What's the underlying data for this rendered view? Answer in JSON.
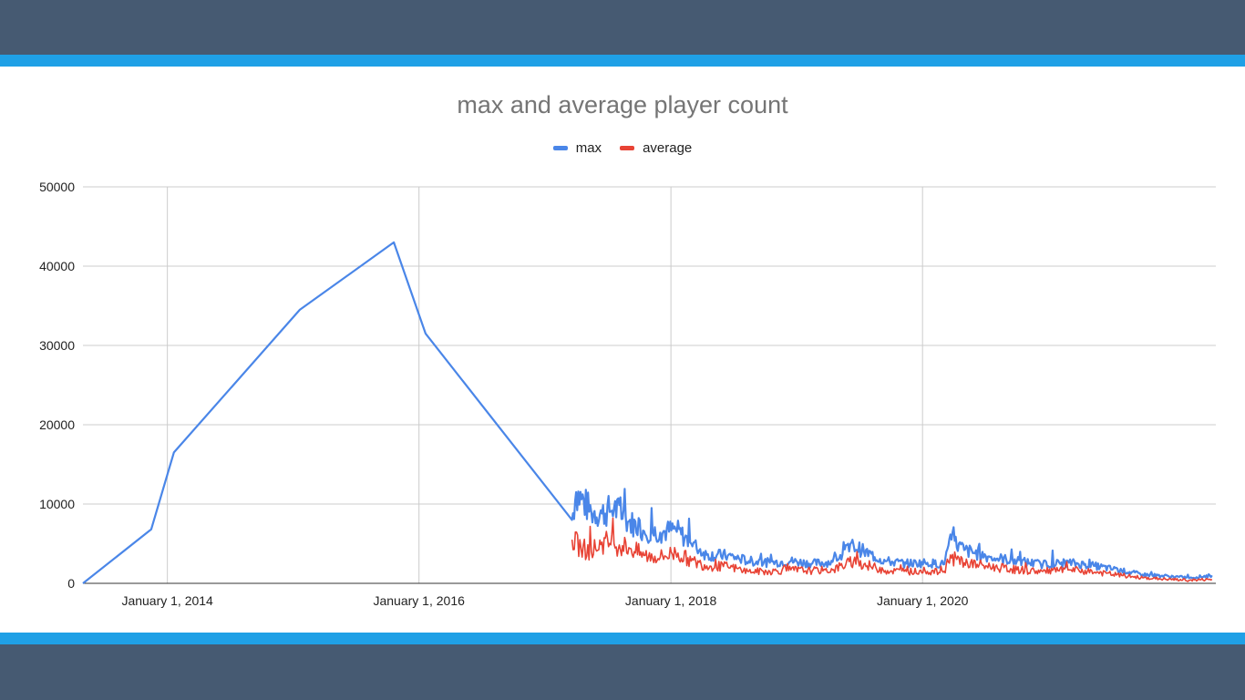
{
  "chart_data": {
    "type": "line",
    "title": "max and average player count",
    "xlabel": "",
    "ylabel": "",
    "legend_position": "top",
    "grid": true,
    "ylim": [
      0,
      50000
    ],
    "xlim": [
      "2013-05-01",
      "2022-05-01"
    ],
    "y_ticks": [
      "0",
      "10000",
      "20000",
      "30000",
      "40000",
      "50000"
    ],
    "x_ticks": [
      {
        "date": "2014-01-01",
        "label": "January 1, 2014"
      },
      {
        "date": "2016-01-01",
        "label": "January 1, 2016"
      },
      {
        "date": "2018-01-01",
        "label": "January 1, 2018"
      },
      {
        "date": "2020-01-01",
        "label": "January 1, 2020"
      }
    ],
    "series": [
      {
        "name": "max",
        "color": "#4a86e8",
        "points": [
          [
            "2013-05-01",
            0
          ],
          [
            "2013-11-15",
            6800
          ],
          [
            "2014-01-20",
            16500
          ],
          [
            "2015-01-20",
            34500
          ],
          [
            "2015-10-20",
            43000
          ],
          [
            "2016-01-20",
            31500
          ],
          [
            "2017-03-20",
            8000
          ],
          [
            "2017-04-01",
            11500
          ],
          [
            "2017-05-15",
            9000
          ],
          [
            "2017-06-15",
            8800
          ],
          [
            "2017-07-20",
            9500
          ],
          [
            "2017-09-01",
            7800
          ],
          [
            "2017-10-15",
            6600
          ],
          [
            "2017-12-01",
            6400
          ],
          [
            "2018-01-15",
            6800
          ],
          [
            "2018-03-01",
            5000
          ],
          [
            "2018-04-15",
            3600
          ],
          [
            "2018-06-15",
            3500
          ],
          [
            "2018-08-15",
            2800
          ],
          [
            "2018-10-15",
            2600
          ],
          [
            "2018-12-15",
            2800
          ],
          [
            "2019-02-15",
            2500
          ],
          [
            "2019-04-15",
            2700
          ],
          [
            "2019-06-15",
            4800
          ],
          [
            "2019-07-15",
            4000
          ],
          [
            "2019-09-15",
            2800
          ],
          [
            "2019-11-15",
            2500
          ],
          [
            "2020-01-15",
            2600
          ],
          [
            "2020-03-01",
            2400
          ],
          [
            "2020-03-25",
            5500
          ],
          [
            "2020-05-01",
            4200
          ],
          [
            "2020-07-15",
            3300
          ],
          [
            "2020-10-01",
            2800
          ],
          [
            "2020-12-15",
            2400
          ],
          [
            "2021-03-01",
            2600
          ],
          [
            "2021-05-15",
            2200
          ],
          [
            "2021-08-01",
            1600
          ],
          [
            "2021-10-01",
            1100
          ],
          [
            "2021-12-15",
            900
          ],
          [
            "2022-02-15",
            700
          ],
          [
            "2022-04-20",
            1000
          ]
        ]
      },
      {
        "name": "average",
        "color": "#e84335",
        "points": [
          [
            "2017-03-20",
            5500
          ],
          [
            "2017-04-15",
            4500
          ],
          [
            "2017-05-15",
            4000
          ],
          [
            "2017-06-15",
            5200
          ],
          [
            "2017-07-20",
            5000
          ],
          [
            "2017-09-01",
            4500
          ],
          [
            "2017-10-15",
            3500
          ],
          [
            "2017-12-01",
            3300
          ],
          [
            "2018-01-15",
            3900
          ],
          [
            "2018-03-01",
            2800
          ],
          [
            "2018-04-15",
            2200
          ],
          [
            "2018-06-15",
            2100
          ],
          [
            "2018-08-15",
            1500
          ],
          [
            "2018-10-15",
            1500
          ],
          [
            "2018-12-15",
            1700
          ],
          [
            "2019-02-15",
            1600
          ],
          [
            "2019-04-15",
            1700
          ],
          [
            "2019-06-15",
            2800
          ],
          [
            "2019-07-15",
            2400
          ],
          [
            "2019-09-15",
            1600
          ],
          [
            "2019-11-15",
            1500
          ],
          [
            "2020-01-15",
            1500
          ],
          [
            "2020-03-01",
            1400
          ],
          [
            "2020-03-25",
            3200
          ],
          [
            "2020-05-01",
            2600
          ],
          [
            "2020-07-15",
            2100
          ],
          [
            "2020-10-01",
            1700
          ],
          [
            "2020-12-15",
            1500
          ],
          [
            "2021-03-01",
            1700
          ],
          [
            "2021-05-15",
            1400
          ],
          [
            "2021-08-01",
            1000
          ],
          [
            "2021-10-01",
            700
          ],
          [
            "2021-12-15",
            500
          ],
          [
            "2022-02-15",
            400
          ],
          [
            "2022-04-20",
            500
          ]
        ]
      }
    ]
  }
}
